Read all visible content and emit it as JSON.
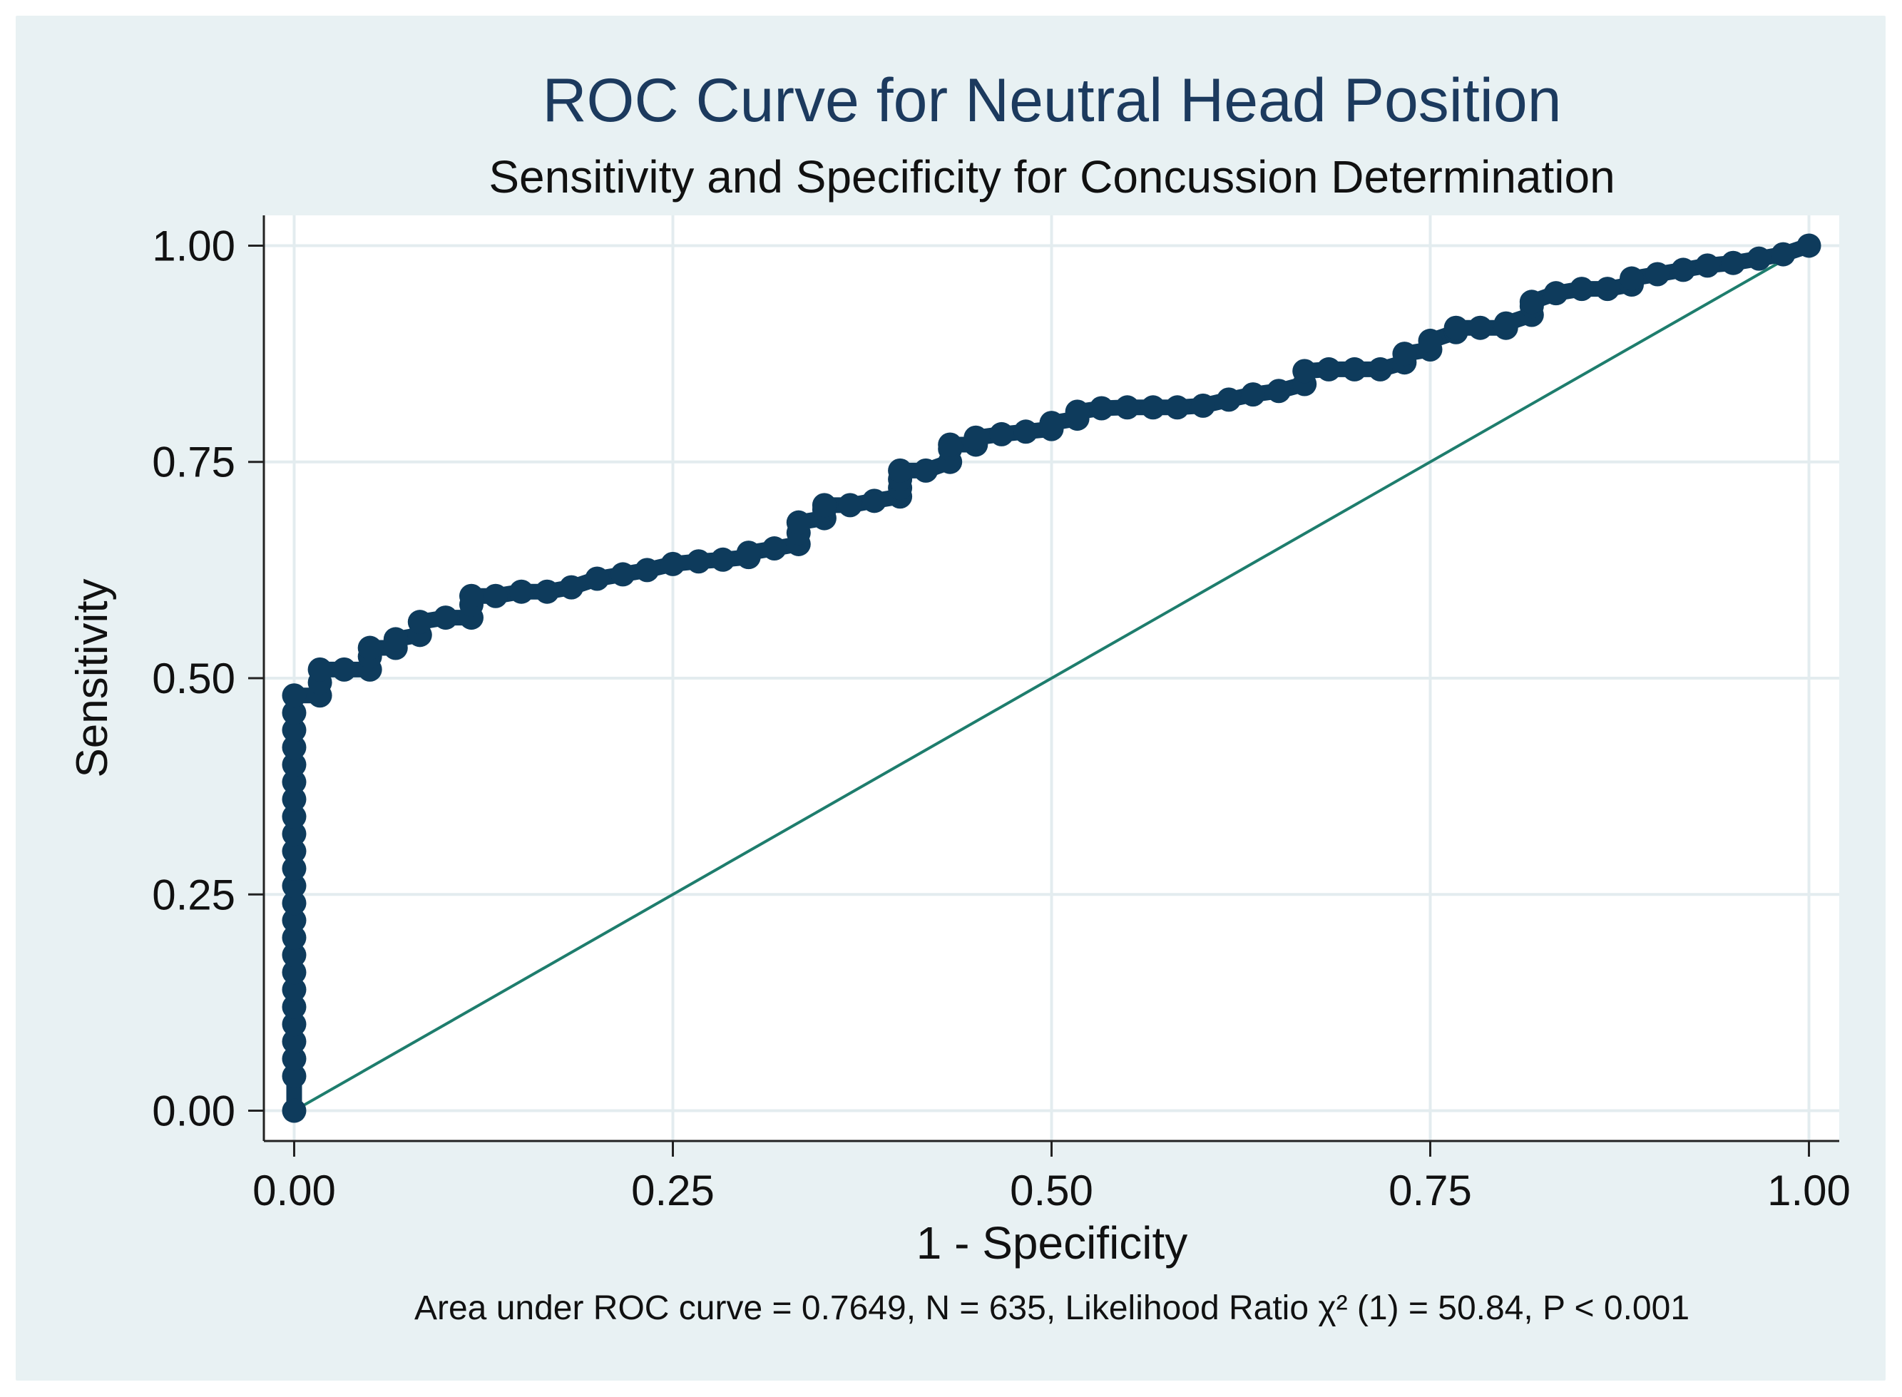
{
  "colors": {
    "outer_bg": "#e8f1f3",
    "plot_bg": "#ffffff",
    "grid": "#e3ecef",
    "title": "#1c3a5e",
    "text": "#111111",
    "marker": "#0e3b5c",
    "reference_line": "#1e7d6d",
    "axis": "#222222"
  },
  "chart_data": {
    "type": "scatter",
    "title": "ROC Curve for Neutral Head Position",
    "subtitle": "Sensitivity and Specificity for Concussion Determination",
    "xlabel": "1 - Specificity",
    "ylabel": "Sensitivity",
    "xlim": [
      -0.02,
      1.02
    ],
    "ylim": [
      -0.035,
      1.035
    ],
    "xticks": [
      0,
      0.25,
      0.5,
      0.75,
      1
    ],
    "yticks": [
      0,
      0.25,
      0.5,
      0.75,
      1
    ],
    "xtick_labels": [
      "0.00",
      "0.25",
      "0.50",
      "0.75",
      "1.00"
    ],
    "ytick_labels": [
      "0.00",
      "0.25",
      "0.50",
      "0.75",
      "1.00"
    ],
    "grid": true,
    "note": "Area under ROC curve = 0.7649, N = 635, Likelihood Ratio χ² (1) = 50.84, P < 0.001",
    "series": [
      {
        "name": "ROC curve",
        "style": "connected markers",
        "x": [
          0,
          0,
          0,
          0,
          0,
          0,
          0,
          0,
          0,
          0,
          0,
          0,
          0,
          0,
          0,
          0,
          0,
          0,
          0,
          0,
          0,
          0,
          0,
          0,
          0.017,
          0.017,
          0.017,
          0.033,
          0.05,
          0.05,
          0.05,
          0.067,
          0.067,
          0.083,
          0.083,
          0.1,
          0.117,
          0.117,
          0.117,
          0.133,
          0.15,
          0.167,
          0.183,
          0.2,
          0.217,
          0.233,
          0.25,
          0.267,
          0.283,
          0.3,
          0.3,
          0.317,
          0.333,
          0.333,
          0.333,
          0.35,
          0.35,
          0.35,
          0.367,
          0.383,
          0.4,
          0.4,
          0.4,
          0.4,
          0.417,
          0.433,
          0.433,
          0.433,
          0.45,
          0.45,
          0.467,
          0.483,
          0.5,
          0.5,
          0.517,
          0.517,
          0.533,
          0.55,
          0.567,
          0.583,
          0.6,
          0.617,
          0.633,
          0.65,
          0.667,
          0.667,
          0.683,
          0.7,
          0.717,
          0.733,
          0.733,
          0.75,
          0.75,
          0.767,
          0.767,
          0.783,
          0.8,
          0.8,
          0.817,
          0.817,
          0.817,
          0.833,
          0.85,
          0.867,
          0.883,
          0.883,
          0.9,
          0.917,
          0.933,
          0.95,
          0.967,
          0.983,
          1.0
        ],
        "y": [
          0,
          0.04,
          0.06,
          0.08,
          0.1,
          0.12,
          0.14,
          0.16,
          0.18,
          0.2,
          0.22,
          0.24,
          0.26,
          0.28,
          0.3,
          0.32,
          0.34,
          0.36,
          0.38,
          0.4,
          0.42,
          0.44,
          0.46,
          0.48,
          0.48,
          0.495,
          0.51,
          0.51,
          0.51,
          0.525,
          0.535,
          0.535,
          0.545,
          0.55,
          0.565,
          0.57,
          0.57,
          0.585,
          0.595,
          0.595,
          0.6,
          0.6,
          0.605,
          0.615,
          0.62,
          0.625,
          0.632,
          0.635,
          0.637,
          0.64,
          0.645,
          0.65,
          0.655,
          0.668,
          0.68,
          0.685,
          0.695,
          0.7,
          0.7,
          0.705,
          0.71,
          0.72,
          0.73,
          0.74,
          0.74,
          0.75,
          0.765,
          0.77,
          0.77,
          0.778,
          0.782,
          0.785,
          0.788,
          0.795,
          0.8,
          0.808,
          0.812,
          0.813,
          0.813,
          0.813,
          0.815,
          0.822,
          0.828,
          0.832,
          0.84,
          0.855,
          0.857,
          0.857,
          0.857,
          0.865,
          0.875,
          0.88,
          0.89,
          0.9,
          0.905,
          0.905,
          0.905,
          0.91,
          0.92,
          0.93,
          0.935,
          0.945,
          0.95,
          0.95,
          0.955,
          0.962,
          0.967,
          0.972,
          0.977,
          0.98,
          0.985,
          0.99,
          1.0
        ]
      },
      {
        "name": "Reference",
        "style": "line",
        "x": [
          0,
          1
        ],
        "y": [
          0,
          1
        ]
      }
    ]
  }
}
